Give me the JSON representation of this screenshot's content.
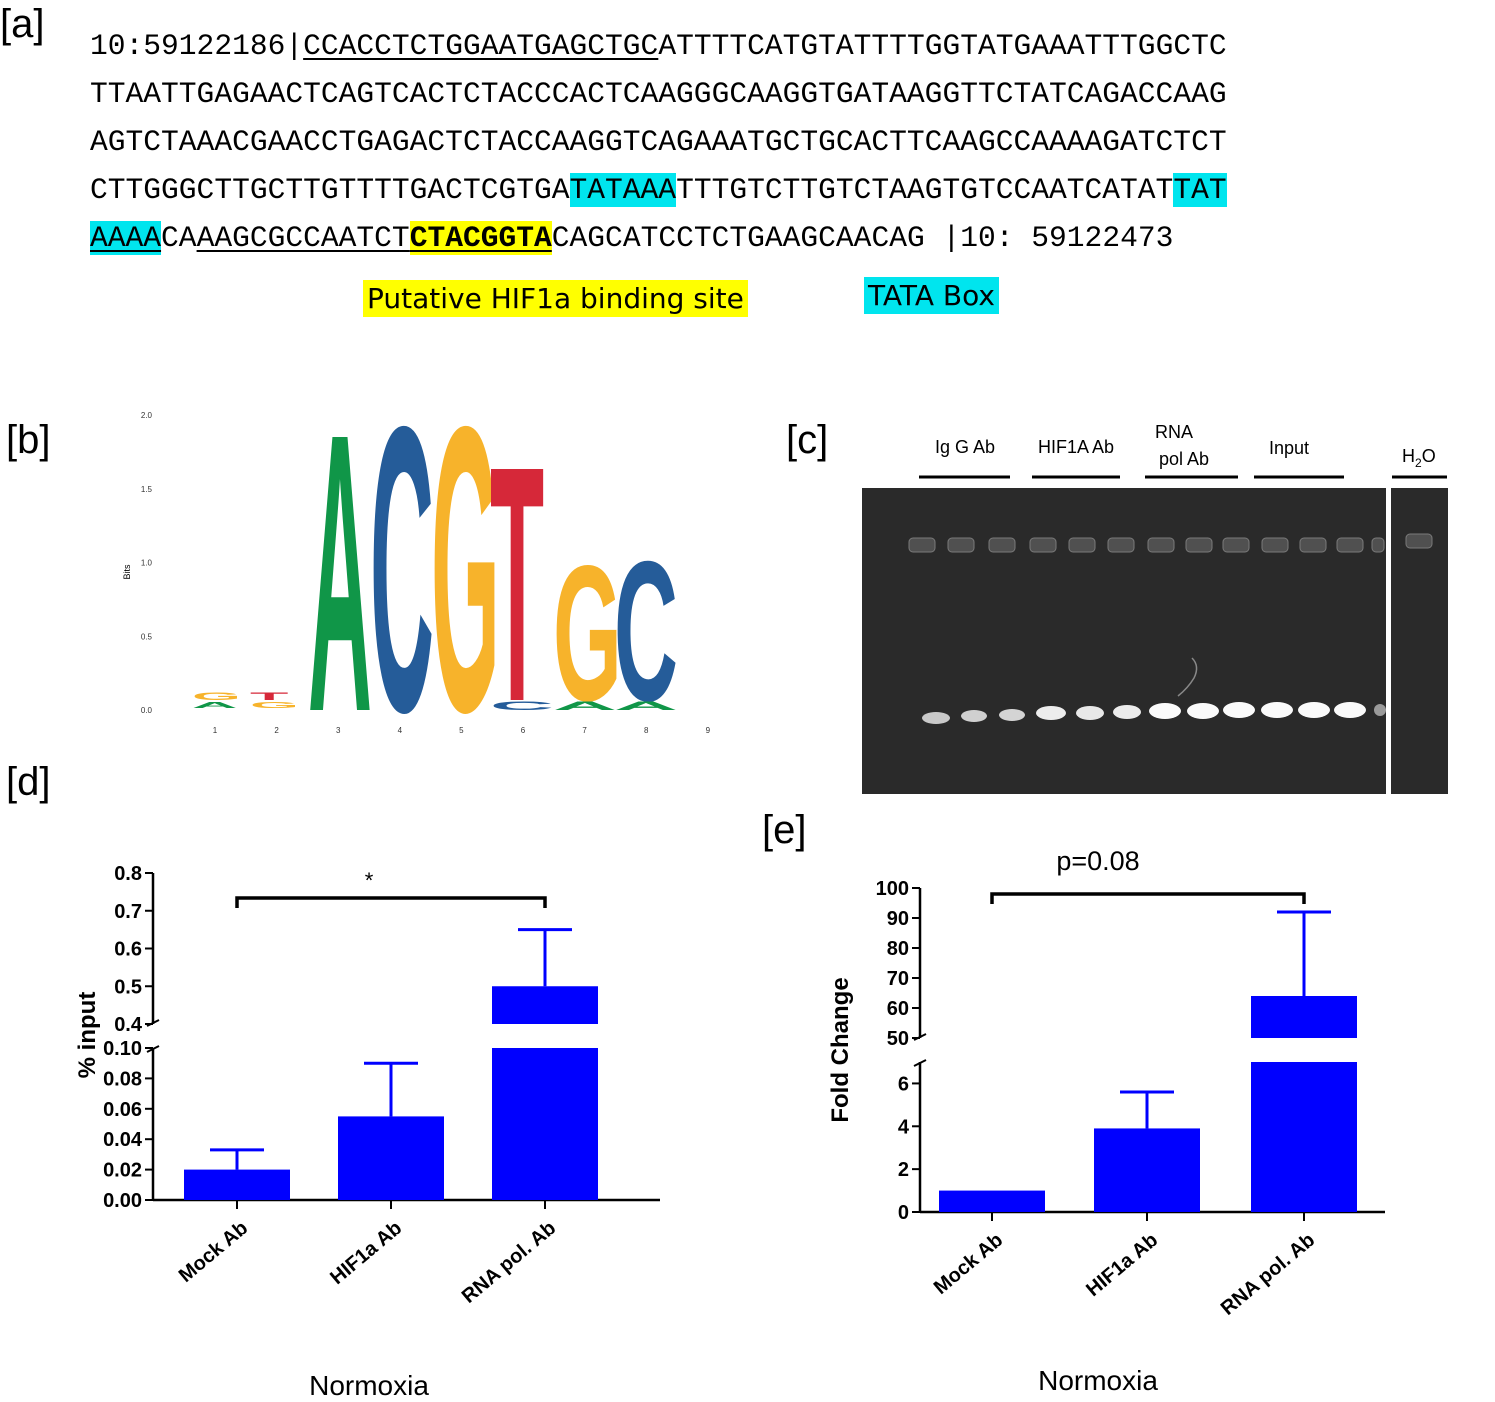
{
  "panel_a": {
    "label": "[a]",
    "lines": [
      [
        {
          "t": "10:59122186|"
        },
        {
          "t": "CCACCTCTGGAATGAGCTGC",
          "u": true
        },
        {
          "t": "ATTTTCATGTATTTTGGTATGAAATTTGGCTC"
        }
      ],
      [
        {
          "t": "TTAATTGAGAACTCAGTCACTCTACCCACTCAAGGGCAAGGTGATAAGGTTCTATCAGACCAAG"
        }
      ],
      [
        {
          "t": "AGTCTAAACGAACCTGAGACTCTACCAAGGTCAGAAATGCTGCACTTCAAGCCAAAAGATCTCT"
        }
      ],
      [
        {
          "t": "CTTGGGCTTGCTTGTTTTGACTCGTGA"
        },
        {
          "t": "TATAAA",
          "tata": true
        },
        {
          "t": "TTTGTCTTGTCTAAGTGTCCAATCATAT"
        },
        {
          "t": "TAT",
          "tata": true
        }
      ],
      [
        {
          "t": "AAAA",
          "tata": true,
          "u": true
        },
        {
          "t": "CA"
        },
        {
          "t": "AAGCGCCAATCT",
          "u": true
        },
        {
          "t": "CTACGGTA",
          "hif": true,
          "u": true
        },
        {
          "t": "CAGCATCCTCTGAAGCAACAG |10: 59122473"
        }
      ]
    ],
    "legend_hif": "Putative HIF1a binding site",
    "legend_tata": "TATA Box",
    "colors": {
      "tata": "#00e5ee",
      "hif": "#ffff00"
    }
  },
  "panel_b": {
    "label": "[b]",
    "ylabel": "Bits",
    "yticks": [
      "0.0",
      "0.5",
      "1.0",
      "1.5",
      "2.0"
    ],
    "xticks": [
      "1",
      "2",
      "3",
      "4",
      "5",
      "6",
      "7",
      "8",
      "9"
    ],
    "letters": [
      "A",
      "C",
      "G",
      "T",
      "G",
      "C"
    ],
    "colors": {
      "A": "#109648",
      "C": "#255c99",
      "G": "#f7b32b",
      "T": "#d62839"
    }
  },
  "panel_c": {
    "label": "[c]",
    "lanes": [
      "Ig G Ab",
      "HIF1A Ab",
      "RNA pol Ab",
      "Input"
    ],
    "lane_rna_1": "RNA",
    "lane_rna_2": "pol Ab",
    "h2o_main": "H",
    "h2o_sub": "2",
    "h2o_end": "O"
  },
  "panel_d": {
    "label": "[d]",
    "chart_data": {
      "type": "bar",
      "categories": [
        "Mock Ab",
        "HIF1a Ab",
        "RNA pol. Ab"
      ],
      "values": [
        0.02,
        0.055,
        0.5
      ],
      "errors": [
        0.013,
        0.035,
        0.15
      ],
      "ylabel": "% input",
      "xlabel": "Normoxia",
      "yticks_lower": [
        "0.00",
        "0.02",
        "0.04",
        "0.06",
        "0.08",
        "0.10"
      ],
      "yticks_upper": [
        "0.4",
        "0.5",
        "0.6",
        "0.7",
        "0.8"
      ],
      "significance": "*",
      "bar_color": "#0000ff"
    }
  },
  "panel_e": {
    "label": "[e]",
    "chart_data": {
      "type": "bar",
      "categories": [
        "Mock Ab",
        "HIF1a Ab",
        "RNA pol. Ab"
      ],
      "values": [
        1.0,
        3.9,
        64
      ],
      "errors": [
        0,
        1.7,
        28
      ],
      "ylabel": "Fold Change",
      "xlabel": "Normoxia",
      "yticks_lower": [
        "0",
        "2",
        "4",
        "6"
      ],
      "yticks_upper": [
        "50",
        "60",
        "70",
        "80",
        "90",
        "100"
      ],
      "significance": "p=0.08",
      "bar_color": "#0000ff"
    }
  }
}
